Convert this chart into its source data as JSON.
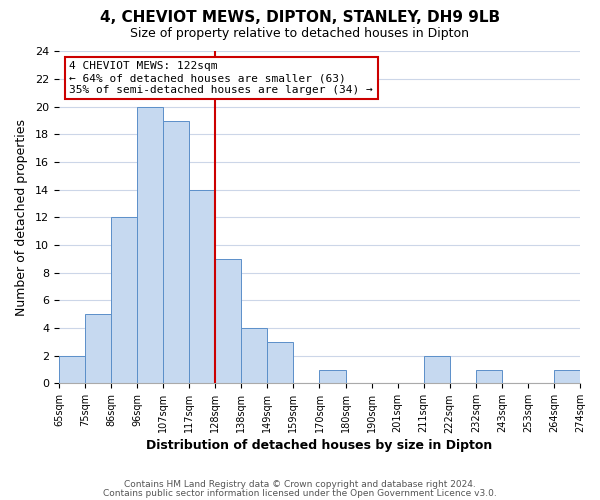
{
  "title": "4, CHEVIOT MEWS, DIPTON, STANLEY, DH9 9LB",
  "subtitle": "Size of property relative to detached houses in Dipton",
  "xlabel": "Distribution of detached houses by size in Dipton",
  "ylabel": "Number of detached properties",
  "bin_labels": [
    "65sqm",
    "75sqm",
    "86sqm",
    "96sqm",
    "107sqm",
    "117sqm",
    "128sqm",
    "138sqm",
    "149sqm",
    "159sqm",
    "170sqm",
    "180sqm",
    "190sqm",
    "201sqm",
    "211sqm",
    "222sqm",
    "232sqm",
    "243sqm",
    "253sqm",
    "264sqm",
    "274sqm"
  ],
  "bar_heights": [
    2,
    5,
    12,
    20,
    19,
    14,
    9,
    4,
    3,
    0,
    1,
    0,
    0,
    0,
    2,
    0,
    1,
    0,
    0,
    1
  ],
  "bar_color": "#c6d9f0",
  "bar_edge_color": "#5b8fc9",
  "vline_x_index": 6,
  "vline_color": "#cc0000",
  "ylim": [
    0,
    24
  ],
  "yticks": [
    0,
    2,
    4,
    6,
    8,
    10,
    12,
    14,
    16,
    18,
    20,
    22,
    24
  ],
  "annotation_title": "4 CHEVIOT MEWS: 122sqm",
  "annotation_line1": "← 64% of detached houses are smaller (63)",
  "annotation_line2": "35% of semi-detached houses are larger (34) →",
  "annotation_box_color": "#ffffff",
  "annotation_box_edge": "#cc0000",
  "footer1": "Contains HM Land Registry data © Crown copyright and database right 2024.",
  "footer2": "Contains public sector information licensed under the Open Government Licence v3.0.",
  "background_color": "#ffffff",
  "grid_color": "#ccd6e8"
}
